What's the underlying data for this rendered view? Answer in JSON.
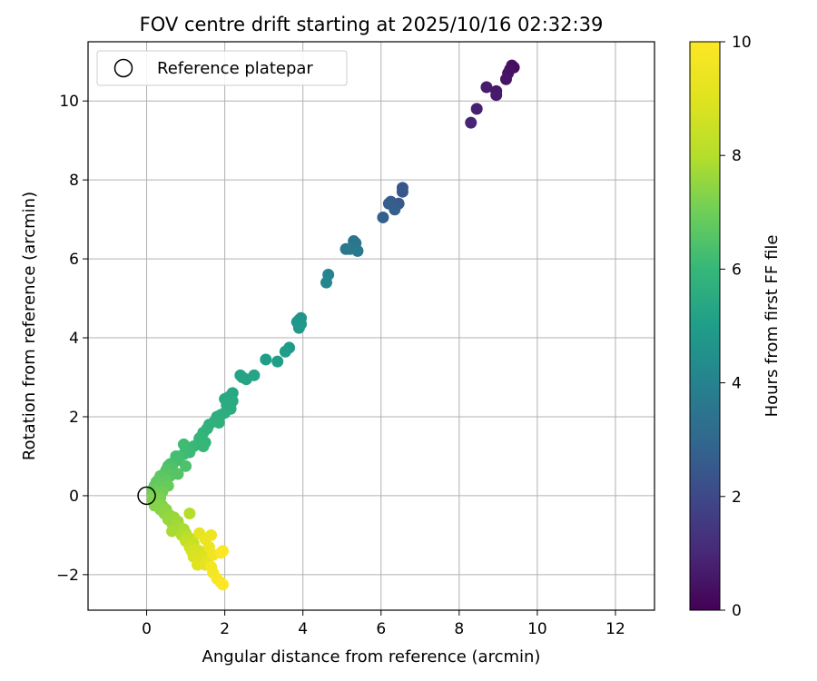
{
  "chart_data": {
    "type": "scatter",
    "title": "FOV centre drift starting at 2025/10/16 02:32:39",
    "xlabel": "Angular distance from reference (arcmin)",
    "ylabel": "Rotation from reference (arcmin)",
    "xlim": [
      -1.5,
      13
    ],
    "ylim": [
      -2.9,
      11.5
    ],
    "xticks": [
      0,
      2,
      4,
      6,
      8,
      10,
      12
    ],
    "yticks": [
      -2,
      0,
      2,
      4,
      6,
      8,
      10
    ],
    "grid": true,
    "legend": {
      "position": "top-left",
      "entries": [
        "Reference platepar"
      ]
    },
    "reference_point": {
      "x": 0,
      "y": 0,
      "label": "Reference platepar"
    },
    "colorbar": {
      "label": "Hours from first FF file",
      "min": 0,
      "max": 10,
      "ticks": [
        0,
        2,
        4,
        6,
        8,
        10
      ],
      "colormap": "viridis"
    },
    "points": [
      {
        "x": 9.4,
        "y": 10.85,
        "c": 0.3
      },
      {
        "x": 9.35,
        "y": 10.9,
        "c": 0.35
      },
      {
        "x": 9.3,
        "y": 10.8,
        "c": 0.4
      },
      {
        "x": 9.25,
        "y": 10.7,
        "c": 0.45
      },
      {
        "x": 9.2,
        "y": 10.55,
        "c": 0.5
      },
      {
        "x": 8.95,
        "y": 10.25,
        "c": 0.6
      },
      {
        "x": 8.95,
        "y": 10.15,
        "c": 0.65
      },
      {
        "x": 8.7,
        "y": 10.35,
        "c": 0.7
      },
      {
        "x": 8.45,
        "y": 9.8,
        "c": 0.8
      },
      {
        "x": 8.3,
        "y": 9.45,
        "c": 0.9
      },
      {
        "x": 6.55,
        "y": 7.8,
        "c": 2.4
      },
      {
        "x": 6.55,
        "y": 7.7,
        "c": 2.45
      },
      {
        "x": 6.45,
        "y": 7.4,
        "c": 2.5
      },
      {
        "x": 6.35,
        "y": 7.35,
        "c": 2.55
      },
      {
        "x": 6.25,
        "y": 7.45,
        "c": 2.6
      },
      {
        "x": 6.2,
        "y": 7.4,
        "c": 2.65
      },
      {
        "x": 6.35,
        "y": 7.25,
        "c": 2.7
      },
      {
        "x": 6.05,
        "y": 7.05,
        "c": 2.75
      },
      {
        "x": 5.3,
        "y": 6.45,
        "c": 3.5
      },
      {
        "x": 5.35,
        "y": 6.4,
        "c": 3.55
      },
      {
        "x": 5.1,
        "y": 6.25,
        "c": 3.6
      },
      {
        "x": 5.2,
        "y": 6.25,
        "c": 3.65
      },
      {
        "x": 5.4,
        "y": 6.2,
        "c": 3.7
      },
      {
        "x": 4.65,
        "y": 5.6,
        "c": 4.1
      },
      {
        "x": 4.6,
        "y": 5.4,
        "c": 4.15
      },
      {
        "x": 3.95,
        "y": 4.5,
        "c": 4.6
      },
      {
        "x": 3.9,
        "y": 4.45,
        "c": 4.65
      },
      {
        "x": 3.85,
        "y": 4.4,
        "c": 4.7
      },
      {
        "x": 3.95,
        "y": 4.35,
        "c": 4.75
      },
      {
        "x": 3.9,
        "y": 4.25,
        "c": 4.8
      },
      {
        "x": 3.65,
        "y": 3.75,
        "c": 4.9
      },
      {
        "x": 3.55,
        "y": 3.65,
        "c": 4.95
      },
      {
        "x": 3.05,
        "y": 3.45,
        "c": 5.0
      },
      {
        "x": 3.35,
        "y": 3.4,
        "c": 5.05
      },
      {
        "x": 2.4,
        "y": 3.05,
        "c": 5.2
      },
      {
        "x": 2.45,
        "y": 3.0,
        "c": 5.22
      },
      {
        "x": 2.55,
        "y": 2.95,
        "c": 5.25
      },
      {
        "x": 2.75,
        "y": 3.05,
        "c": 5.28
      },
      {
        "x": 2.2,
        "y": 2.6,
        "c": 5.35
      },
      {
        "x": 2.1,
        "y": 2.5,
        "c": 5.4
      },
      {
        "x": 2.0,
        "y": 2.45,
        "c": 5.45
      },
      {
        "x": 2.2,
        "y": 2.4,
        "c": 5.48
      },
      {
        "x": 2.05,
        "y": 2.3,
        "c": 5.5
      },
      {
        "x": 2.15,
        "y": 2.2,
        "c": 5.55
      },
      {
        "x": 2.0,
        "y": 2.1,
        "c": 5.6
      },
      {
        "x": 1.9,
        "y": 2.05,
        "c": 5.62
      },
      {
        "x": 1.8,
        "y": 2.0,
        "c": 5.65
      },
      {
        "x": 1.75,
        "y": 1.9,
        "c": 5.7
      },
      {
        "x": 1.85,
        "y": 1.85,
        "c": 5.72
      },
      {
        "x": 1.6,
        "y": 1.8,
        "c": 5.75
      },
      {
        "x": 1.55,
        "y": 1.7,
        "c": 5.8
      },
      {
        "x": 1.45,
        "y": 1.6,
        "c": 5.85
      },
      {
        "x": 1.4,
        "y": 1.5,
        "c": 5.88
      },
      {
        "x": 1.35,
        "y": 1.45,
        "c": 5.9
      },
      {
        "x": 1.5,
        "y": 1.35,
        "c": 5.92
      },
      {
        "x": 1.3,
        "y": 1.3,
        "c": 5.95
      },
      {
        "x": 1.2,
        "y": 1.25,
        "c": 6.0
      },
      {
        "x": 1.45,
        "y": 1.25,
        "c": 6.02
      },
      {
        "x": 1.1,
        "y": 1.2,
        "c": 6.05
      },
      {
        "x": 1.0,
        "y": 1.15,
        "c": 6.1
      },
      {
        "x": 1.1,
        "y": 1.1,
        "c": 6.12
      },
      {
        "x": 0.95,
        "y": 1.05,
        "c": 6.15
      },
      {
        "x": 0.95,
        "y": 1.3,
        "c": 6.2
      },
      {
        "x": 0.85,
        "y": 1.0,
        "c": 6.22
      },
      {
        "x": 0.75,
        "y": 1.0,
        "c": 6.25
      },
      {
        "x": 0.8,
        "y": 0.9,
        "c": 6.3
      },
      {
        "x": 0.7,
        "y": 0.85,
        "c": 6.32
      },
      {
        "x": 0.6,
        "y": 0.8,
        "c": 6.35
      },
      {
        "x": 0.55,
        "y": 0.75,
        "c": 6.4
      },
      {
        "x": 1.0,
        "y": 0.75,
        "c": 6.42
      },
      {
        "x": 0.65,
        "y": 0.7,
        "c": 6.45
      },
      {
        "x": 0.5,
        "y": 0.65,
        "c": 6.5
      },
      {
        "x": 0.45,
        "y": 0.55,
        "c": 6.55
      },
      {
        "x": 0.8,
        "y": 0.55,
        "c": 6.58
      },
      {
        "x": 0.6,
        "y": 0.5,
        "c": 6.6
      },
      {
        "x": 0.35,
        "y": 0.5,
        "c": 6.65
      },
      {
        "x": 0.3,
        "y": 0.4,
        "c": 6.7
      },
      {
        "x": 0.5,
        "y": 0.4,
        "c": 6.72
      },
      {
        "x": 0.25,
        "y": 0.35,
        "c": 6.75
      },
      {
        "x": 0.4,
        "y": 0.3,
        "c": 6.78
      },
      {
        "x": 0.2,
        "y": 0.25,
        "c": 6.8
      },
      {
        "x": 0.3,
        "y": 0.2,
        "c": 6.85
      },
      {
        "x": 0.55,
        "y": 0.25,
        "c": 6.88
      },
      {
        "x": 0.15,
        "y": 0.15,
        "c": 6.9
      },
      {
        "x": 0.25,
        "y": 0.1,
        "c": 6.95
      },
      {
        "x": 0.4,
        "y": 0.1,
        "c": 7.0
      },
      {
        "x": 0.15,
        "y": 0.05,
        "c": 7.05
      },
      {
        "x": 0.2,
        "y": 0.0,
        "c": 7.1
      },
      {
        "x": 0.35,
        "y": -0.05,
        "c": 7.15
      },
      {
        "x": 0.25,
        "y": -0.1,
        "c": 7.2
      },
      {
        "x": 0.15,
        "y": -0.1,
        "c": 7.22
      },
      {
        "x": 0.3,
        "y": -0.2,
        "c": 7.25
      },
      {
        "x": 0.4,
        "y": -0.25,
        "c": 7.3
      },
      {
        "x": 0.2,
        "y": -0.25,
        "c": 7.32
      },
      {
        "x": 0.35,
        "y": -0.35,
        "c": 7.35
      },
      {
        "x": 0.5,
        "y": -0.35,
        "c": 7.4
      },
      {
        "x": 0.45,
        "y": -0.45,
        "c": 7.45
      },
      {
        "x": 0.6,
        "y": -0.5,
        "c": 7.5
      },
      {
        "x": 0.55,
        "y": -0.6,
        "c": 7.55
      },
      {
        "x": 0.7,
        "y": -0.55,
        "c": 7.58
      },
      {
        "x": 0.65,
        "y": -0.7,
        "c": 7.6
      },
      {
        "x": 0.8,
        "y": -0.65,
        "c": 7.65
      },
      {
        "x": 0.75,
        "y": -0.75,
        "c": 7.7
      },
      {
        "x": 0.85,
        "y": -0.8,
        "c": 7.75
      },
      {
        "x": 0.65,
        "y": -0.9,
        "c": 7.8
      },
      {
        "x": 0.95,
        "y": -0.85,
        "c": 7.85
      },
      {
        "x": 1.0,
        "y": -0.95,
        "c": 7.9
      },
      {
        "x": 0.9,
        "y": -1.0,
        "c": 7.95
      },
      {
        "x": 1.1,
        "y": -0.45,
        "c": 8.0
      },
      {
        "x": 1.05,
        "y": -1.05,
        "c": 8.1
      },
      {
        "x": 1.15,
        "y": -1.1,
        "c": 8.2
      },
      {
        "x": 1.0,
        "y": -1.15,
        "c": 8.3
      },
      {
        "x": 1.2,
        "y": -1.2,
        "c": 8.4
      },
      {
        "x": 1.1,
        "y": -1.3,
        "c": 8.5
      },
      {
        "x": 1.25,
        "y": -1.35,
        "c": 8.6
      },
      {
        "x": 1.15,
        "y": -1.4,
        "c": 8.7
      },
      {
        "x": 1.35,
        "y": -1.4,
        "c": 8.75
      },
      {
        "x": 1.3,
        "y": -1.5,
        "c": 8.8
      },
      {
        "x": 1.2,
        "y": -1.55,
        "c": 8.85
      },
      {
        "x": 1.45,
        "y": -1.55,
        "c": 8.9
      },
      {
        "x": 1.35,
        "y": -1.65,
        "c": 8.95
      },
      {
        "x": 1.3,
        "y": -1.75,
        "c": 9.0
      },
      {
        "x": 1.55,
        "y": -1.65,
        "c": 9.1
      },
      {
        "x": 1.5,
        "y": -1.75,
        "c": 9.2
      },
      {
        "x": 1.35,
        "y": -0.95,
        "c": 9.3
      },
      {
        "x": 1.5,
        "y": -1.1,
        "c": 9.4
      },
      {
        "x": 1.65,
        "y": -1.0,
        "c": 9.45
      },
      {
        "x": 1.6,
        "y": -1.3,
        "c": 9.5
      },
      {
        "x": 1.7,
        "y": -1.5,
        "c": 9.6
      },
      {
        "x": 1.65,
        "y": -1.8,
        "c": 9.65
      },
      {
        "x": 1.7,
        "y": -1.95,
        "c": 9.7
      },
      {
        "x": 1.8,
        "y": -2.1,
        "c": 9.8
      },
      {
        "x": 1.9,
        "y": -2.2,
        "c": 9.85
      },
      {
        "x": 1.9,
        "y": -1.45,
        "c": 9.9
      },
      {
        "x": 1.95,
        "y": -1.4,
        "c": 9.95
      },
      {
        "x": 1.95,
        "y": -2.25,
        "c": 10.0
      }
    ]
  }
}
